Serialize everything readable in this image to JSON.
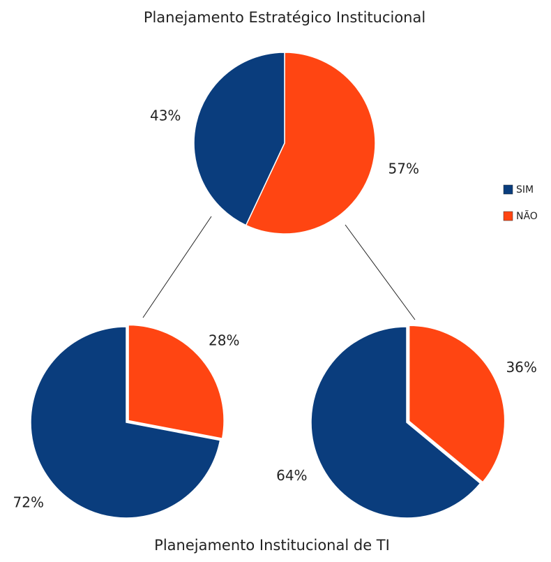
{
  "chart_data": [
    {
      "type": "pie",
      "title": "Planejamento Estratégico Institucional",
      "categories": [
        "SIM",
        "NÃO"
      ],
      "values": [
        43,
        57
      ],
      "value_labels": [
        "43%",
        "57%"
      ],
      "colors": [
        "#0a3d7d",
        "#ff4512"
      ],
      "legend": "right"
    },
    {
      "type": "pie",
      "title": "Planejamento Institucional de TI",
      "values": [
        72,
        28
      ],
      "value_labels": [
        "72%",
        "28%"
      ],
      "colors": [
        "#0a3d7d",
        "#ff4512"
      ]
    },
    {
      "type": "pie",
      "values": [
        64,
        36
      ],
      "value_labels": [
        "64%",
        "36%"
      ],
      "colors": [
        "#0a3d7d",
        "#ff4512"
      ]
    }
  ]
}
